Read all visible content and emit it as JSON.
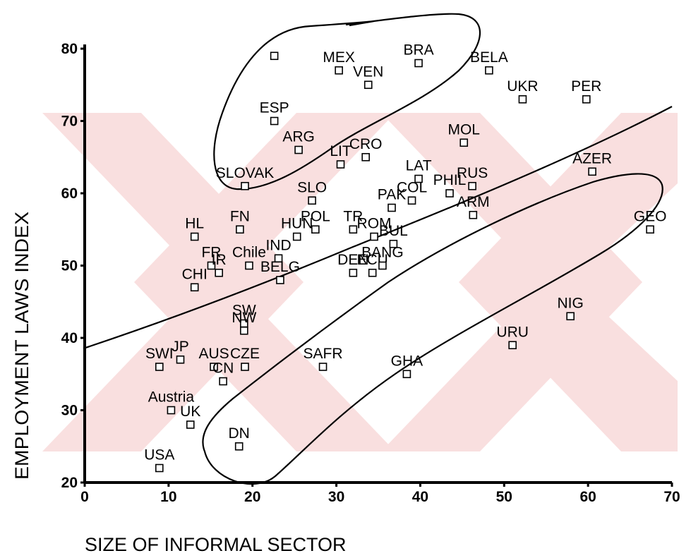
{
  "chart_data": {
    "type": "scatter",
    "title": "",
    "xlabel": "SIZE OF INFORMAL SECTOR",
    "ylabel": "EMPLOYMENT LAWS INDEX",
    "xlim": [
      0,
      70
    ],
    "ylim": [
      20,
      80
    ],
    "x_ticks": [
      "0",
      "10",
      "20",
      "30",
      "40",
      "50",
      "60",
      "70"
    ],
    "y_ticks": [
      "20",
      "30",
      "40",
      "50",
      "60",
      "70",
      "80"
    ],
    "grid": false,
    "marker": "hollow-square",
    "points": [
      {
        "label": "",
        "x": 22.6,
        "y": 79
      },
      {
        "label": "MEX",
        "x": 30.3,
        "y": 77
      },
      {
        "label": "BRA",
        "x": 39.8,
        "y": 78
      },
      {
        "label": "BELA",
        "x": 48.2,
        "y": 77
      },
      {
        "label": "VEN",
        "x": 33.8,
        "y": 75
      },
      {
        "label": "UKR",
        "x": 52.2,
        "y": 73
      },
      {
        "label": "PER",
        "x": 59.8,
        "y": 73
      },
      {
        "label": "ESP",
        "x": 22.6,
        "y": 70
      },
      {
        "label": "MOL",
        "x": 45.2,
        "y": 67
      },
      {
        "label": "ARG",
        "x": 25.5,
        "y": 66
      },
      {
        "label": "CRO",
        "x": 33.5,
        "y": 65
      },
      {
        "label": "LIT",
        "x": 30.5,
        "y": 64
      },
      {
        "label": "AZER",
        "x": 60.5,
        "y": 63
      },
      {
        "label": "LAT",
        "x": 39.8,
        "y": 62
      },
      {
        "label": "SLOVAK",
        "x": 19.1,
        "y": 61
      },
      {
        "label": "RUS",
        "x": 46.2,
        "y": 61
      },
      {
        "label": "PHIL",
        "x": 43.5,
        "y": 60
      },
      {
        "label": "SLO",
        "x": 27.1,
        "y": 59
      },
      {
        "label": "COL",
        "x": 39.0,
        "y": 59
      },
      {
        "label": "PAK",
        "x": 36.6,
        "y": 58
      },
      {
        "label": "ARM",
        "x": 46.3,
        "y": 57
      },
      {
        "label": "GEO",
        "x": 67.4,
        "y": 55
      },
      {
        "label": "HL",
        "x": 13.1,
        "y": 54
      },
      {
        "label": "FN",
        "x": 18.5,
        "y": 55
      },
      {
        "label": "HUN",
        "x": 25.3,
        "y": 54
      },
      {
        "label": "POL",
        "x": 27.5,
        "y": 55
      },
      {
        "label": "TR",
        "x": 32.0,
        "y": 55
      },
      {
        "label": "ROM",
        "x": 34.5,
        "y": 54
      },
      {
        "label": "BUL",
        "x": 36.8,
        "y": 53
      },
      {
        "label": "FR",
        "x": 15.1,
        "y": 50
      },
      {
        "label": "IR",
        "x": 16.0,
        "y": 49
      },
      {
        "label": "Chile",
        "x": 19.6,
        "y": 50
      },
      {
        "label": "IND",
        "x": 23.1,
        "y": 51
      },
      {
        "label": "BELG",
        "x": 23.3,
        "y": 48
      },
      {
        "label": "CHI",
        "x": 13.1,
        "y": 47
      },
      {
        "label": "DEN",
        "x": 32.0,
        "y": 49
      },
      {
        "label": "ECU",
        "x": 34.3,
        "y": 49
      },
      {
        "label": "BANG",
        "x": 35.5,
        "y": 50
      },
      {
        "label": "SW",
        "x": 19.0,
        "y": 42
      },
      {
        "label": "NW",
        "x": 19.0,
        "y": 41
      },
      {
        "label": "NIG",
        "x": 57.9,
        "y": 43
      },
      {
        "label": "URU",
        "x": 51.0,
        "y": 39
      },
      {
        "label": "SWI",
        "x": 8.9,
        "y": 36
      },
      {
        "label": "JP",
        "x": 11.4,
        "y": 37
      },
      {
        "label": "AUS",
        "x": 15.4,
        "y": 36
      },
      {
        "label": "CZE",
        "x": 19.1,
        "y": 36
      },
      {
        "label": "CN",
        "x": 16.5,
        "y": 34
      },
      {
        "label": "SAFR",
        "x": 28.4,
        "y": 36
      },
      {
        "label": "GHA",
        "x": 38.4,
        "y": 35
      },
      {
        "label": "Austria",
        "x": 10.3,
        "y": 30
      },
      {
        "label": "UK",
        "x": 12.6,
        "y": 28
      },
      {
        "label": "DN",
        "x": 18.4,
        "y": 25
      },
      {
        "label": "USA",
        "x": 8.9,
        "y": 22
      }
    ],
    "annotations": [
      "hand-drawn upper ellipse",
      "hand-drawn lower ellipse",
      "hand-drawn divider curve"
    ]
  }
}
